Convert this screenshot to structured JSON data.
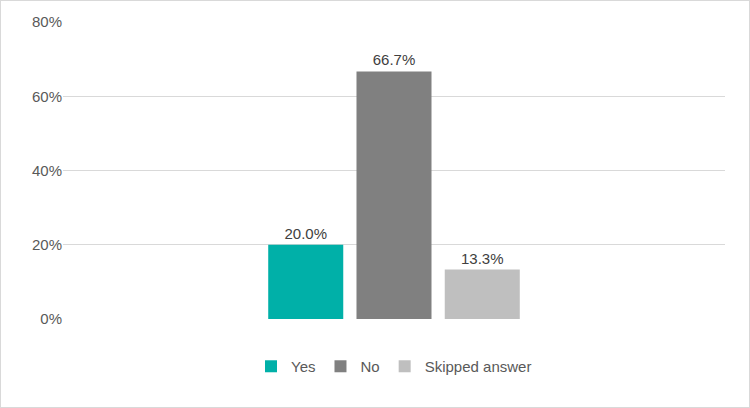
{
  "chart_data": {
    "type": "bar",
    "categories": [
      null
    ],
    "series": [
      {
        "name": "Yes",
        "color": "#00b0a8",
        "values": [
          20.0
        ],
        "value_labels": [
          "20.0%"
        ]
      },
      {
        "name": "No",
        "color": "#808080",
        "values": [
          66.7
        ],
        "value_labels": [
          "66.7%"
        ]
      },
      {
        "name": "Skipped answer",
        "color": "#bfbfbf",
        "values": [
          13.3
        ],
        "value_labels": [
          "13.3%"
        ]
      }
    ],
    "ylim": [
      0,
      80
    ],
    "yticks": [
      {
        "value": 0,
        "label": "0%"
      },
      {
        "value": 20,
        "label": "20%"
      },
      {
        "value": 40,
        "label": "40%"
      },
      {
        "value": 60,
        "label": "60%"
      },
      {
        "value": 80,
        "label": "80%"
      }
    ],
    "grid": true,
    "legend": "bottom",
    "data_labels": true,
    "tick_labels": "y"
  }
}
